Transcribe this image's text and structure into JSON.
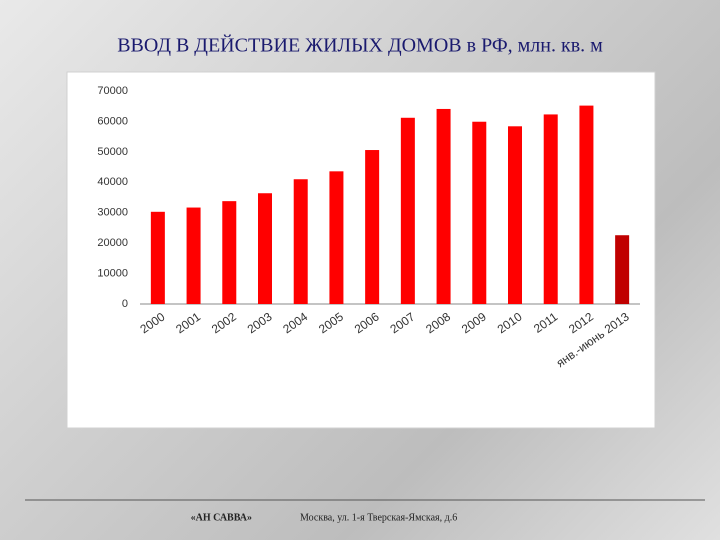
{
  "chart_data": {
    "type": "bar",
    "title": "ВВОД В ДЕЙСТВИЕ ЖИЛЫХ ДОМОВ в РФ, млн. кв. м",
    "categories": [
      "2000",
      "2001",
      "2002",
      "2003",
      "2004",
      "2005",
      "2006",
      "2007",
      "2008",
      "2009",
      "2010",
      "2011",
      "2012",
      "янв.-июнь 2013"
    ],
    "values": [
      30300,
      31700,
      33800,
      36400,
      41000,
      43600,
      50600,
      61200,
      64100,
      59900,
      58400,
      62300,
      65200,
      22600
    ],
    "colors": [
      "#ff0000",
      "#ff0000",
      "#ff0000",
      "#ff0000",
      "#ff0000",
      "#ff0000",
      "#ff0000",
      "#ff0000",
      "#ff0000",
      "#ff0000",
      "#ff0000",
      "#ff0000",
      "#ff0000",
      "#c00000"
    ],
    "ylim": [
      0,
      70000
    ],
    "yticks": [
      0,
      10000,
      20000,
      30000,
      40000,
      50000,
      60000,
      70000
    ],
    "grid": false
  },
  "footer": {
    "company": "«АН САВВА»",
    "address": "Москва, ул. 1-я Тверская-Ямская, д.6"
  }
}
